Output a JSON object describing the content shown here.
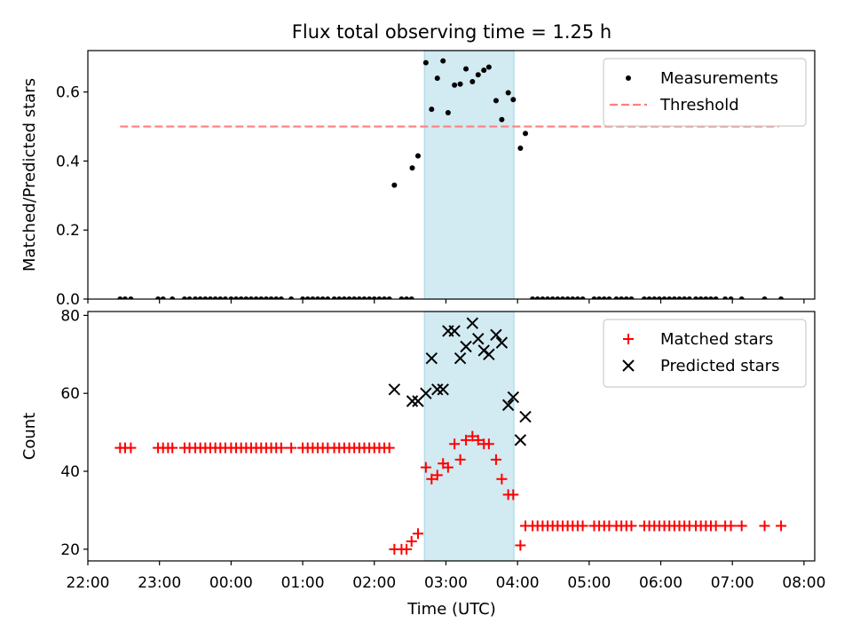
{
  "chart_data": {
    "type": "scatter",
    "title": "Flux total observing time = 1.25 h",
    "xlabel": "Time (UTC)",
    "x_unit": "hours relative to 00:00 UTC",
    "xlim": [
      -2.0,
      8.15
    ],
    "xticks": [
      -2,
      -1,
      0,
      1,
      2,
      3,
      4,
      5,
      6,
      7,
      8
    ],
    "xtick_labels": [
      "22:00",
      "23:00",
      "00:00",
      "01:00",
      "02:00",
      "03:00",
      "04:00",
      "05:00",
      "06:00",
      "07:00",
      "08:00"
    ],
    "highlight": {
      "start": 2.7,
      "end": 3.95,
      "color": "#add8e6"
    },
    "panels": [
      {
        "ylabel": "Matched/Predicted stars",
        "ylim": [
          0,
          0.72
        ],
        "yticks": [
          0.0,
          0.2,
          0.4,
          0.6
        ],
        "ytick_labels": [
          "0.0",
          "0.2",
          "0.4",
          "0.6"
        ],
        "threshold": {
          "name": "Threshold",
          "value": 0.5,
          "x": [
            -1.55,
            7.65
          ],
          "color": "#ff7f7f"
        },
        "series": [
          {
            "name": "Measurements",
            "marker": "dot",
            "color": "#000000",
            "points": [
              [
                -1.55,
                0
              ],
              [
                -1.48,
                0
              ],
              [
                -1.4,
                0
              ],
              [
                -1.02,
                0
              ],
              [
                -0.95,
                0
              ],
              [
                -0.82,
                0
              ],
              [
                -0.65,
                0
              ],
              [
                -0.58,
                0
              ],
              [
                -0.5,
                0
              ],
              [
                -0.43,
                0
              ],
              [
                -0.36,
                0
              ],
              [
                -0.29,
                0
              ],
              [
                -0.22,
                0
              ],
              [
                -0.15,
                0
              ],
              [
                -0.08,
                0
              ],
              [
                0.0,
                0
              ],
              [
                0.07,
                0
              ],
              [
                0.14,
                0
              ],
              [
                0.21,
                0
              ],
              [
                0.28,
                0
              ],
              [
                0.35,
                0
              ],
              [
                0.42,
                0
              ],
              [
                0.49,
                0
              ],
              [
                0.56,
                0
              ],
              [
                0.63,
                0
              ],
              [
                0.7,
                0
              ],
              [
                0.84,
                0
              ],
              [
                1.0,
                0
              ],
              [
                1.07,
                0
              ],
              [
                1.14,
                0
              ],
              [
                1.21,
                0
              ],
              [
                1.28,
                0
              ],
              [
                1.35,
                0
              ],
              [
                1.44,
                0
              ],
              [
                1.51,
                0
              ],
              [
                1.58,
                0
              ],
              [
                1.65,
                0
              ],
              [
                1.72,
                0
              ],
              [
                1.79,
                0
              ],
              [
                1.86,
                0
              ],
              [
                1.93,
                0
              ],
              [
                2.0,
                0
              ],
              [
                2.07,
                0
              ],
              [
                2.14,
                0
              ],
              [
                2.21,
                0
              ],
              [
                2.38,
                0
              ],
              [
                2.45,
                0
              ],
              [
                2.52,
                0
              ],
              [
                2.28,
                0.33
              ],
              [
                2.53,
                0.38
              ],
              [
                2.61,
                0.415
              ],
              [
                2.72,
                0.685
              ],
              [
                2.8,
                0.55
              ],
              [
                2.88,
                0.64
              ],
              [
                2.96,
                0.69
              ],
              [
                3.03,
                0.54
              ],
              [
                3.12,
                0.62
              ],
              [
                3.2,
                0.623
              ],
              [
                3.28,
                0.667
              ],
              [
                3.37,
                0.63
              ],
              [
                3.45,
                0.65
              ],
              [
                3.53,
                0.663
              ],
              [
                3.6,
                0.672
              ],
              [
                3.7,
                0.575
              ],
              [
                3.78,
                0.52
              ],
              [
                3.87,
                0.598
              ],
              [
                3.94,
                0.578
              ],
              [
                4.04,
                0.437
              ],
              [
                4.11,
                0.48
              ],
              [
                4.21,
                0
              ],
              [
                4.28,
                0
              ],
              [
                4.35,
                0
              ],
              [
                4.42,
                0
              ],
              [
                4.49,
                0
              ],
              [
                4.56,
                0
              ],
              [
                4.63,
                0
              ],
              [
                4.7,
                0
              ],
              [
                4.77,
                0
              ],
              [
                4.84,
                0
              ],
              [
                4.91,
                0
              ],
              [
                5.07,
                0
              ],
              [
                5.14,
                0
              ],
              [
                5.21,
                0
              ],
              [
                5.28,
                0
              ],
              [
                5.38,
                0
              ],
              [
                5.45,
                0
              ],
              [
                5.52,
                0
              ],
              [
                5.59,
                0
              ],
              [
                5.77,
                0
              ],
              [
                5.84,
                0
              ],
              [
                5.91,
                0
              ],
              [
                5.98,
                0
              ],
              [
                6.05,
                0
              ],
              [
                6.12,
                0
              ],
              [
                6.19,
                0
              ],
              [
                6.26,
                0
              ],
              [
                6.33,
                0
              ],
              [
                6.4,
                0
              ],
              [
                6.49,
                0
              ],
              [
                6.56,
                0
              ],
              [
                6.63,
                0
              ],
              [
                6.7,
                0
              ],
              [
                6.77,
                0
              ],
              [
                6.9,
                0
              ],
              [
                6.98,
                0
              ],
              [
                7.13,
                0
              ],
              [
                7.45,
                0
              ],
              [
                7.68,
                0
              ]
            ]
          }
        ]
      },
      {
        "ylabel": "Count",
        "ylim": [
          17,
          81
        ],
        "yticks": [
          20,
          40,
          60,
          80
        ],
        "ytick_labels": [
          "20",
          "40",
          "60",
          "80"
        ],
        "series": [
          {
            "name": "Matched stars",
            "marker": "plus",
            "color": "#ff0000",
            "points": [
              [
                -1.55,
                46
              ],
              [
                -1.48,
                46
              ],
              [
                -1.4,
                46
              ],
              [
                -1.02,
                46
              ],
              [
                -0.95,
                46
              ],
              [
                -0.88,
                46
              ],
              [
                -0.82,
                46
              ],
              [
                -0.65,
                46
              ],
              [
                -0.58,
                46
              ],
              [
                -0.5,
                46
              ],
              [
                -0.43,
                46
              ],
              [
                -0.36,
                46
              ],
              [
                -0.29,
                46
              ],
              [
                -0.22,
                46
              ],
              [
                -0.15,
                46
              ],
              [
                -0.08,
                46
              ],
              [
                0.0,
                46
              ],
              [
                0.07,
                46
              ],
              [
                0.14,
                46
              ],
              [
                0.21,
                46
              ],
              [
                0.28,
                46
              ],
              [
                0.35,
                46
              ],
              [
                0.42,
                46
              ],
              [
                0.49,
                46
              ],
              [
                0.56,
                46
              ],
              [
                0.63,
                46
              ],
              [
                0.7,
                46
              ],
              [
                0.84,
                46
              ],
              [
                1.0,
                46
              ],
              [
                1.07,
                46
              ],
              [
                1.14,
                46
              ],
              [
                1.21,
                46
              ],
              [
                1.28,
                46
              ],
              [
                1.35,
                46
              ],
              [
                1.44,
                46
              ],
              [
                1.51,
                46
              ],
              [
                1.58,
                46
              ],
              [
                1.65,
                46
              ],
              [
                1.72,
                46
              ],
              [
                1.79,
                46
              ],
              [
                1.86,
                46
              ],
              [
                1.93,
                46
              ],
              [
                2.0,
                46
              ],
              [
                2.07,
                46
              ],
              [
                2.14,
                46
              ],
              [
                2.21,
                46
              ],
              [
                2.28,
                20
              ],
              [
                2.38,
                20
              ],
              [
                2.45,
                20
              ],
              [
                2.52,
                22
              ],
              [
                2.61,
                24
              ],
              [
                2.72,
                41
              ],
              [
                2.8,
                38
              ],
              [
                2.88,
                39
              ],
              [
                2.96,
                42
              ],
              [
                3.03,
                41
              ],
              [
                3.12,
                47
              ],
              [
                3.2,
                43
              ],
              [
                3.28,
                48
              ],
              [
                3.37,
                49
              ],
              [
                3.45,
                48
              ],
              [
                3.53,
                47
              ],
              [
                3.6,
                47
              ],
              [
                3.7,
                43
              ],
              [
                3.78,
                38
              ],
              [
                3.87,
                34
              ],
              [
                3.94,
                34
              ],
              [
                4.04,
                21
              ],
              [
                4.11,
                26
              ],
              [
                4.21,
                26
              ],
              [
                4.28,
                26
              ],
              [
                4.35,
                26
              ],
              [
                4.42,
                26
              ],
              [
                4.49,
                26
              ],
              [
                4.56,
                26
              ],
              [
                4.63,
                26
              ],
              [
                4.7,
                26
              ],
              [
                4.77,
                26
              ],
              [
                4.84,
                26
              ],
              [
                4.91,
                26
              ],
              [
                5.07,
                26
              ],
              [
                5.14,
                26
              ],
              [
                5.21,
                26
              ],
              [
                5.28,
                26
              ],
              [
                5.38,
                26
              ],
              [
                5.45,
                26
              ],
              [
                5.52,
                26
              ],
              [
                5.59,
                26
              ],
              [
                5.77,
                26
              ],
              [
                5.84,
                26
              ],
              [
                5.91,
                26
              ],
              [
                5.98,
                26
              ],
              [
                6.05,
                26
              ],
              [
                6.12,
                26
              ],
              [
                6.19,
                26
              ],
              [
                6.26,
                26
              ],
              [
                6.33,
                26
              ],
              [
                6.4,
                26
              ],
              [
                6.49,
                26
              ],
              [
                6.56,
                26
              ],
              [
                6.63,
                26
              ],
              [
                6.7,
                26
              ],
              [
                6.77,
                26
              ],
              [
                6.9,
                26
              ],
              [
                6.98,
                26
              ],
              [
                7.13,
                26
              ],
              [
                7.45,
                26
              ],
              [
                7.68,
                26
              ]
            ]
          },
          {
            "name": "Predicted stars",
            "marker": "x",
            "color": "#000000",
            "points": [
              [
                2.28,
                61
              ],
              [
                2.53,
                58
              ],
              [
                2.61,
                58
              ],
              [
                2.72,
                60
              ],
              [
                2.8,
                69
              ],
              [
                2.88,
                61
              ],
              [
                2.96,
                61
              ],
              [
                3.03,
                76
              ],
              [
                3.12,
                76
              ],
              [
                3.2,
                69
              ],
              [
                3.28,
                72
              ],
              [
                3.37,
                78
              ],
              [
                3.45,
                74
              ],
              [
                3.53,
                71
              ],
              [
                3.6,
                70
              ],
              [
                3.7,
                75
              ],
              [
                3.78,
                73
              ],
              [
                3.87,
                57
              ],
              [
                3.94,
                59
              ],
              [
                4.04,
                48
              ],
              [
                4.11,
                54
              ]
            ]
          }
        ]
      }
    ]
  }
}
